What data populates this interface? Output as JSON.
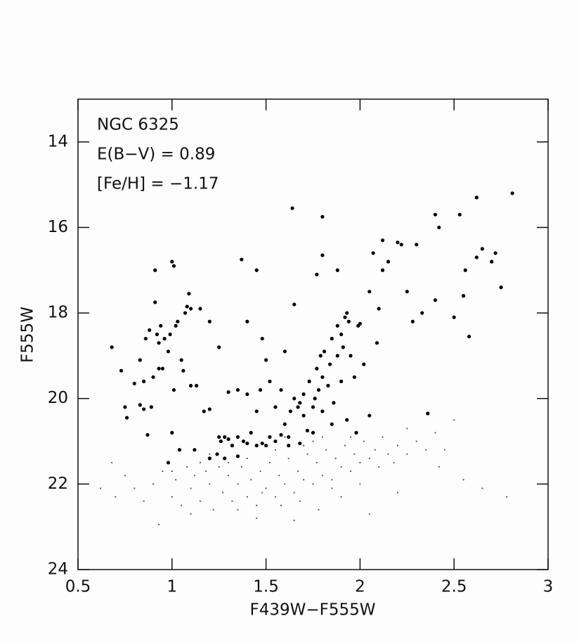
{
  "chart_data": {
    "type": "scatter",
    "xlabel": "F439W−F555W",
    "ylabel": "F555W",
    "annotations": [
      "NGC 6325",
      "E(B−V) = 0.89",
      "[Fe/H] = −1.17"
    ],
    "xlim": [
      0.5,
      3
    ],
    "xticks": [
      0.5,
      1,
      1.5,
      2,
      2.5,
      3
    ],
    "ylim": [
      24,
      13
    ],
    "yticks": [
      14,
      16,
      18,
      20,
      22,
      24
    ],
    "grid": false,
    "series": [
      {
        "color": "#000000",
        "size": 2.6,
        "x": [
          0.68,
          0.73,
          0.75,
          0.76,
          0.8,
          0.83,
          0.83,
          0.85,
          0.85,
          0.86,
          0.87,
          0.88,
          0.89,
          0.9,
          0.91,
          0.91,
          0.92,
          0.93,
          0.93,
          0.94,
          0.95,
          0.96,
          0.98,
          0.99,
          1.0,
          1.01,
          1.01,
          1.02,
          1.03,
          1.0,
          1.05,
          1.06,
          1.07,
          1.08,
          1.09,
          1.1,
          1.1,
          1.13,
          1.15,
          1.17,
          1.2,
          1.2,
          0.98,
          1.04,
          1.12,
          1.24,
          1.26,
          1.28,
          1.3,
          1.32,
          1.35,
          1.38,
          1.4,
          1.42,
          1.45,
          1.48,
          1.5,
          1.52,
          1.55,
          1.58,
          1.6,
          1.62,
          1.63,
          1.65,
          1.67,
          1.68,
          1.7,
          1.7,
          1.72,
          1.73,
          1.75,
          1.76,
          1.77,
          1.78,
          1.79,
          1.8,
          1.8,
          1.81,
          1.83,
          1.84,
          1.85,
          1.86,
          1.88,
          1.88,
          1.9,
          1.91,
          1.92,
          1.93,
          1.94,
          1.95,
          1.97,
          1.99,
          2.0,
          2.02,
          2.05,
          2.05,
          2.07,
          2.1,
          2.12,
          2.12,
          2.15,
          2.2,
          2.22,
          2.25,
          2.28,
          2.3,
          2.33,
          2.36,
          2.4,
          2.42,
          2.4,
          2.5,
          2.53,
          2.55,
          2.56,
          2.58,
          2.62,
          2.62,
          2.65,
          2.7,
          2.72,
          2.75,
          2.81,
          1.64,
          1.8,
          1.8,
          1.77,
          1.37,
          1.45,
          1.4,
          1.48,
          1.5,
          1.52,
          1.3,
          1.35,
          1.4,
          1.47,
          1.25,
          1.65,
          1.6,
          1.58,
          1.55,
          1.45,
          1.88,
          1.9,
          2.09,
          1.98,
          1.93,
          1.25,
          1.2,
          1.28,
          1.35,
          1.62,
          1.68,
          1.75,
          1.85
        ],
        "values": [
          18.8,
          19.35,
          20.2,
          20.45,
          19.65,
          19.1,
          20.15,
          20.25,
          19.6,
          18.6,
          20.85,
          18.4,
          20.2,
          19.5,
          17.0,
          17.75,
          18.5,
          18.7,
          19.3,
          18.3,
          19.3,
          18.6,
          18.9,
          18.5,
          16.8,
          16.9,
          19.8,
          18.3,
          18.2,
          20.8,
          19.1,
          19.35,
          18.0,
          17.85,
          17.55,
          17.9,
          19.7,
          19.7,
          17.9,
          20.3,
          18.2,
          20.25,
          21.5,
          21.2,
          21.2,
          21.3,
          21.0,
          20.9,
          20.95,
          21.1,
          20.9,
          21.0,
          21.05,
          20.8,
          21.1,
          21.05,
          21.1,
          20.9,
          21.0,
          20.85,
          20.6,
          20.9,
          20.3,
          20.0,
          20.2,
          20.1,
          20.4,
          19.9,
          20.75,
          19.6,
          20.2,
          20.0,
          19.3,
          19.8,
          19.0,
          19.5,
          20.3,
          18.9,
          19.7,
          19.2,
          18.6,
          20.1,
          19.0,
          18.3,
          19.6,
          18.8,
          18.1,
          18.0,
          18.2,
          19.0,
          19.5,
          18.3,
          18.25,
          19.2,
          20.4,
          17.5,
          16.6,
          17.9,
          17.0,
          16.3,
          16.8,
          16.35,
          16.4,
          17.5,
          18.2,
          16.4,
          18.0,
          20.35,
          15.7,
          16.0,
          17.7,
          18.1,
          15.7,
          17.6,
          17.0,
          18.55,
          15.3,
          16.7,
          16.5,
          16.8,
          16.6,
          17.4,
          15.2,
          15.55,
          15.75,
          16.65,
          17.1,
          16.75,
          17.0,
          18.2,
          18.6,
          19.1,
          19.6,
          19.85,
          19.8,
          19.9,
          19.8,
          18.8,
          17.8,
          18.9,
          19.8,
          20.2,
          20.3,
          17.0,
          18.5,
          18.7,
          20.8,
          20.5,
          20.9,
          21.4,
          21.4,
          21.35,
          21.1,
          21.05,
          20.8,
          20.6
        ]
      },
      {
        "color": "#555555",
        "size": 1.1,
        "x": [
          0.62,
          0.7,
          0.75,
          0.8,
          0.9,
          0.93,
          0.95,
          1.0,
          1.02,
          1.05,
          1.08,
          1.1,
          1.12,
          1.15,
          1.18,
          1.2,
          1.22,
          1.25,
          1.27,
          1.3,
          1.32,
          1.35,
          1.37,
          1.4,
          1.42,
          1.45,
          1.47,
          1.5,
          1.52,
          1.55,
          1.57,
          1.6,
          1.62,
          1.65,
          1.67,
          1.7,
          1.72,
          1.75,
          1.77,
          1.8,
          1.82,
          1.85,
          1.87,
          1.9,
          1.92,
          1.95,
          1.97,
          2.0,
          2.02,
          2.05,
          2.08,
          2.1,
          2.12,
          2.15,
          2.18,
          2.2,
          2.25,
          2.3,
          2.35,
          2.4,
          2.45,
          2.5,
          2.55,
          2.65,
          2.78,
          1.45,
          1.65,
          2.05,
          1.1,
          1.35,
          1.9,
          2.2,
          1.55,
          1.7,
          1.6,
          1.75,
          1.8,
          1.3,
          1.4,
          1.2,
          1.15,
          1.85,
          2.0,
          1.0,
          0.85,
          0.68,
          1.48,
          1.58,
          1.68,
          1.78,
          1.95,
          2.25,
          2.42
        ],
        "values": [
          22.1,
          22.3,
          21.8,
          22.1,
          22.0,
          22.95,
          21.7,
          22.3,
          21.9,
          22.5,
          21.6,
          22.1,
          21.8,
          22.4,
          21.7,
          22.0,
          22.6,
          21.6,
          22.2,
          21.8,
          22.4,
          22.0,
          21.6,
          22.3,
          21.9,
          22.5,
          21.7,
          22.1,
          21.5,
          22.3,
          21.8,
          22.0,
          21.4,
          22.2,
          21.7,
          21.9,
          21.3,
          22.0,
          21.5,
          21.8,
          21.2,
          21.9,
          21.4,
          21.6,
          21.1,
          21.7,
          21.3,
          21.5,
          21.0,
          21.4,
          21.2,
          21.6,
          20.9,
          21.3,
          21.5,
          21.1,
          21.3,
          21.0,
          21.2,
          20.8,
          21.2,
          20.5,
          21.9,
          22.1,
          22.3,
          22.8,
          22.85,
          22.7,
          22.7,
          22.6,
          22.3,
          22.2,
          21.2,
          21.1,
          20.9,
          21.0,
          20.9,
          21.5,
          21.4,
          21.3,
          21.5,
          22.1,
          22.0,
          21.7,
          22.4,
          21.5,
          22.2,
          22.5,
          22.4,
          22.6,
          20.9,
          20.7,
          21.6
        ]
      }
    ]
  }
}
